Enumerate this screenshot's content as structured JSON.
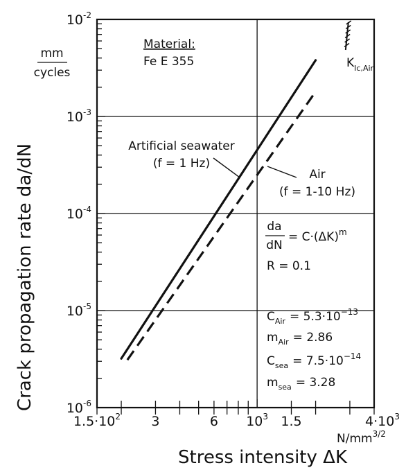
{
  "chart_data": {
    "type": "line",
    "xlabel": "Stress intensity ΔK",
    "ylabel": "Crack propagation rate da/dN",
    "x_unit": {
      "base": "N/mm",
      "exp": "3/2"
    },
    "y_unit": {
      "num": "mm",
      "den": "cycles"
    },
    "x_scale": "log",
    "y_scale": "log",
    "xlim": [
      150,
      4000
    ],
    "ylim": [
      1e-06,
      0.01
    ],
    "grid": true,
    "x_tick_labels": [
      {
        "value": 150,
        "base": "1.5·10",
        "exp": "2"
      },
      {
        "value": 300,
        "base": "3",
        "exp": ""
      },
      {
        "value": 600,
        "base": "6",
        "exp": ""
      },
      {
        "value": 1000,
        "base": "10",
        "exp": "3"
      },
      {
        "value": 1500,
        "base": "1.5",
        "exp": ""
      },
      {
        "value": 4000,
        "base": "4·10",
        "exp": "3"
      }
    ],
    "y_tick_labels": [
      {
        "value": 0.01,
        "base": "10",
        "exp": "-2"
      },
      {
        "value": 0.001,
        "base": "10",
        "exp": "-3"
      },
      {
        "value": 0.0001,
        "base": "10",
        "exp": "-4"
      },
      {
        "value": 1e-05,
        "base": "10",
        "exp": "-5"
      },
      {
        "value": 1e-06,
        "base": "10",
        "exp": "-6"
      }
    ],
    "series": [
      {
        "name": "Artificial seawater",
        "condition": "(f = 1 Hz)",
        "style": "solid",
        "x": [
          200,
          2000
        ],
        "y": [
          3.2e-06,
          0.0038
        ]
      },
      {
        "name": "Air",
        "condition": "(f = 1-10 Hz)",
        "style": "dashed",
        "x": [
          215,
          2000
        ],
        "y": [
          3.1e-06,
          0.0018
        ]
      }
    ],
    "annotations": {
      "material_label": "Material:",
      "material_value": "Fe E 355",
      "kic_base": "K",
      "kic_sub": "Ic,Air",
      "kic_x": 2900,
      "formula": {
        "num": "da",
        "den": "dN",
        "rhs": "= C·(ΔK)",
        "exp": "m"
      },
      "ratio": "R = 0.1",
      "params": [
        {
          "sym": "C",
          "sub": "Air",
          "val": "= 5.3·10",
          "exp": "−13"
        },
        {
          "sym": "m",
          "sub": "Air",
          "val": "= 2.86",
          "exp": ""
        },
        {
          "sym": "C",
          "sub": "sea",
          "val": "= 7.5·10",
          "exp": "−14"
        },
        {
          "sym": "m",
          "sub": "sea",
          "val": "= 3.28",
          "exp": ""
        }
      ]
    }
  }
}
